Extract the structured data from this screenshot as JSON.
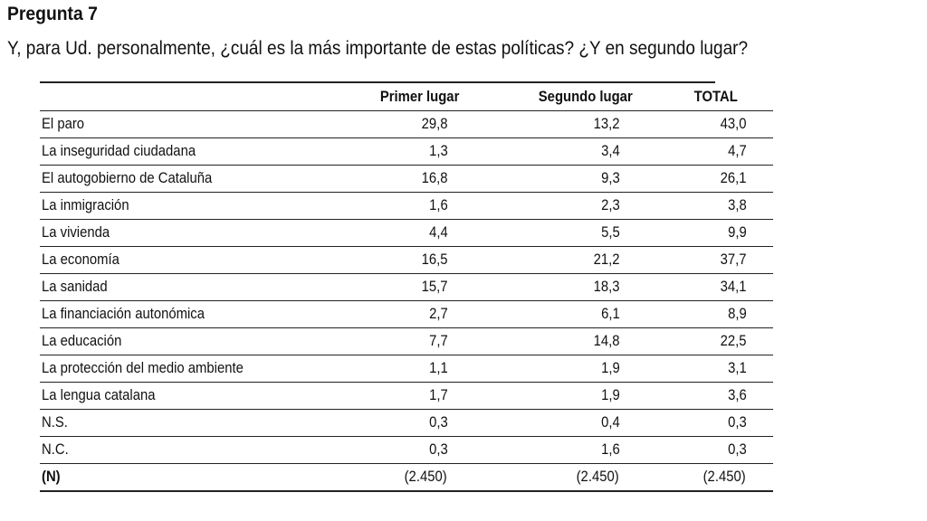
{
  "heading": "Pregunta 7",
  "question": "Y, para Ud. personalmente, ¿cuál es la más importante de estas políticas? ¿Y en segundo lugar?",
  "table": {
    "columns": [
      "",
      "Primer lugar",
      "Segundo lugar",
      "TOTAL"
    ],
    "rows": [
      {
        "label": "El paro",
        "primer": "29,8",
        "segundo": "13,2",
        "total": "43,0"
      },
      {
        "label": "La inseguridad ciudadana",
        "primer": "1,3",
        "segundo": "3,4",
        "total": "4,7"
      },
      {
        "label": "El autogobierno de Cataluña",
        "primer": "16,8",
        "segundo": "9,3",
        "total": "26,1"
      },
      {
        "label": "La inmigración",
        "primer": "1,6",
        "segundo": "2,3",
        "total": "3,8"
      },
      {
        "label": "La vivienda",
        "primer": "4,4",
        "segundo": "5,5",
        "total": "9,9"
      },
      {
        "label": "La economía",
        "primer": "16,5",
        "segundo": "21,2",
        "total": "37,7"
      },
      {
        "label": "La sanidad",
        "primer": "15,7",
        "segundo": "18,3",
        "total": "34,1"
      },
      {
        "label": "La financiación autonómica",
        "primer": "2,7",
        "segundo": "6,1",
        "total": "8,9"
      },
      {
        "label": "La educación",
        "primer": "7,7",
        "segundo": "14,8",
        "total": "22,5"
      },
      {
        "label": "La protección del medio ambiente",
        "primer": "1,1",
        "segundo": "1,9",
        "total": "3,1"
      },
      {
        "label": "La lengua catalana",
        "primer": "1,7",
        "segundo": "1,9",
        "total": "3,6"
      },
      {
        "label": "N.S.",
        "primer": "0,3",
        "segundo": "0,4",
        "total": "0,3"
      },
      {
        "label": "N.C.",
        "primer": "0,3",
        "segundo": "1,6",
        "total": "0,3"
      },
      {
        "label": "(N)",
        "primer": "(2.450)",
        "segundo": "(2.450)",
        "total": "(2.450)"
      }
    ]
  }
}
